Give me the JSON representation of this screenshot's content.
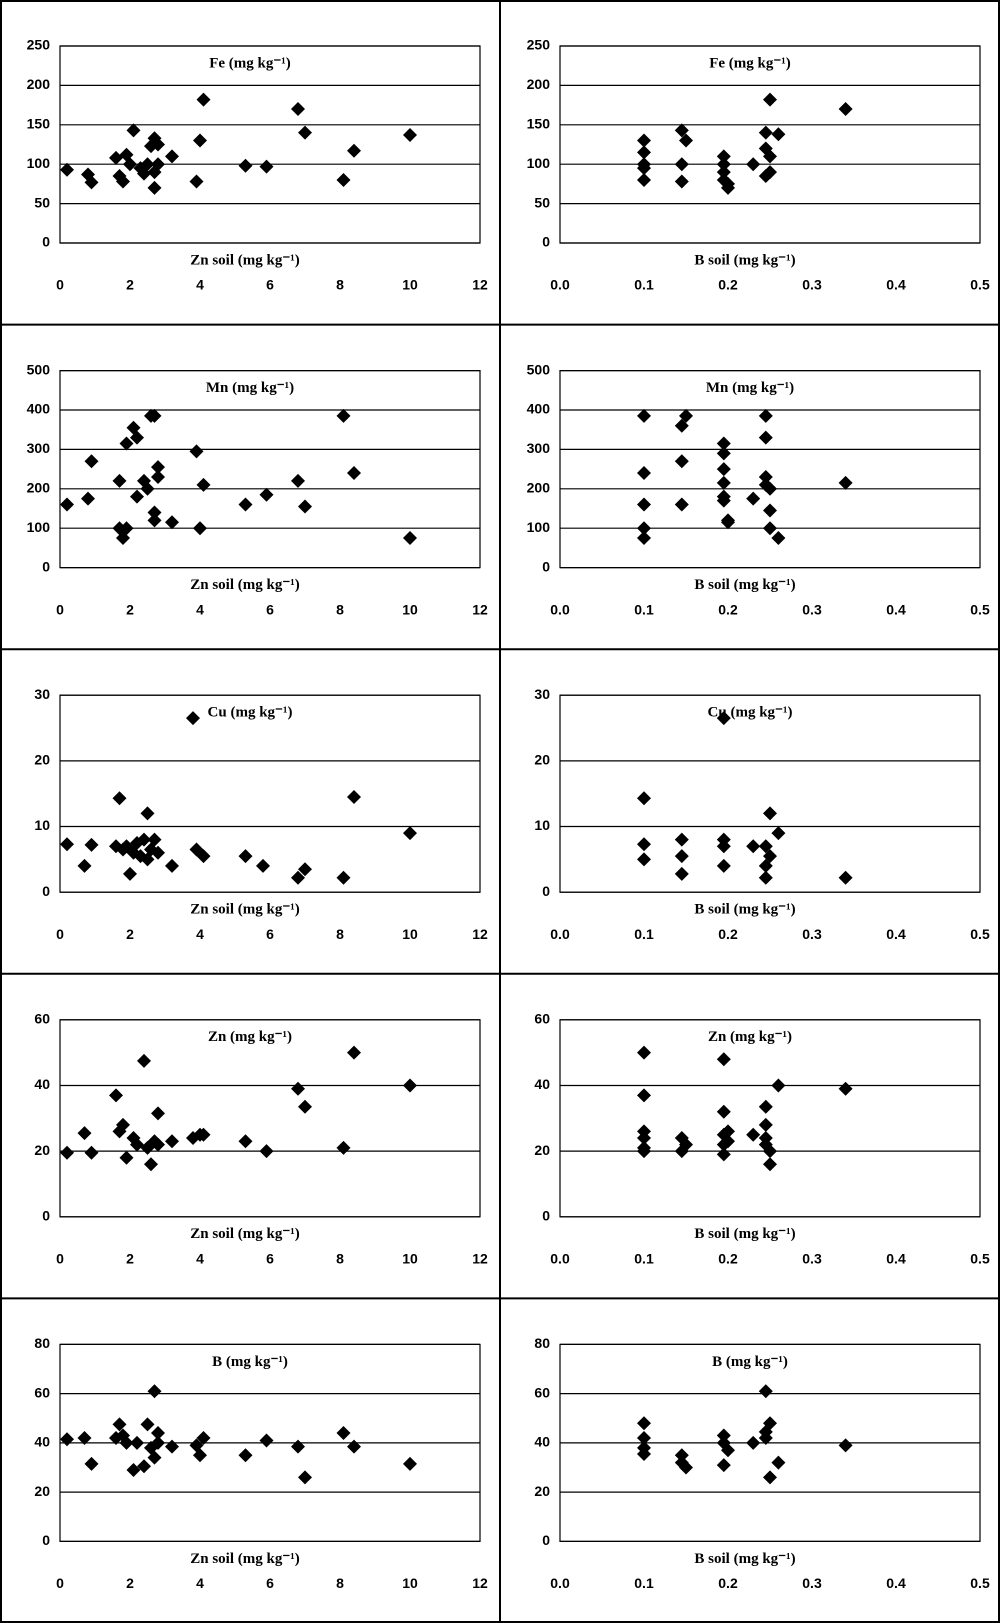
{
  "chart_data": [
    {
      "type": "scatter",
      "title": "Fe (mg kg⁻¹)",
      "x_label": "Zn soil (mg kg⁻¹)",
      "color": "#000000",
      "grid": true,
      "x": [
        0.2,
        0.8,
        0.9,
        1.6,
        1.7,
        1.8,
        1.9,
        2.0,
        2.1,
        2.3,
        2.4,
        2.5,
        2.6,
        2.7,
        2.7,
        2.7,
        2.8,
        2.8,
        3.2,
        3.9,
        4.0,
        4.1,
        5.3,
        5.9,
        6.8,
        7.0,
        8.1,
        8.4,
        10
      ],
      "values": [
        93,
        87,
        77,
        108,
        85,
        78,
        112,
        100,
        143,
        95,
        88,
        100,
        123,
        133,
        90,
        70,
        125,
        100,
        110,
        78,
        130,
        182,
        98,
        97,
        170,
        140,
        80,
        117,
        137
      ],
      "xlim": [
        0,
        12
      ],
      "xticks": [
        0,
        2,
        4,
        6,
        8,
        10,
        12
      ],
      "ylim": [
        0,
        250
      ],
      "yticks": [
        0,
        50,
        100,
        150,
        200,
        250
      ]
    },
    {
      "type": "scatter",
      "title": "Fe (mg kg⁻¹)",
      "x_label": "B soil (mg kg⁻¹)",
      "color": "#000000",
      "grid": true,
      "x": [
        0.1,
        0.1,
        0.1,
        0.1,
        0.1,
        0.145,
        0.145,
        0.145,
        0.15,
        0.195,
        0.195,
        0.195,
        0.195,
        0.2,
        0.2,
        0.23,
        0.245,
        0.245,
        0.245,
        0.25,
        0.25,
        0.25,
        0.26,
        0.34
      ],
      "values": [
        130,
        115,
        100,
        95,
        80,
        143,
        100,
        78,
        130,
        110,
        100,
        90,
        80,
        75,
        70,
        100,
        140,
        120,
        85,
        182,
        110,
        90,
        138,
        170
      ],
      "xlim": [
        0,
        0.5
      ],
      "xticks": [
        {
          "value": 0,
          "label": "0.0"
        },
        0.1,
        0.2,
        0.3,
        0.4,
        0.5
      ],
      "ylim": [
        0,
        250
      ],
      "yticks": [
        0,
        50,
        100,
        150,
        200,
        250
      ]
    },
    {
      "type": "scatter",
      "title": "Mn (mg kg⁻¹)",
      "x_label": "Zn soil (mg kg⁻¹)",
      "color": "#000000",
      "grid": true,
      "x": [
        0.2,
        0.8,
        0.9,
        1.7,
        1.7,
        1.8,
        1.9,
        1.9,
        2.1,
        2.2,
        2.2,
        2.4,
        2.5,
        2.6,
        2.7,
        2.7,
        2.7,
        2.8,
        2.8,
        3.2,
        3.9,
        4.0,
        4.1,
        5.3,
        5.9,
        6.8,
        7.0,
        8.1,
        8.4,
        10
      ],
      "values": [
        160,
        175,
        270,
        220,
        100,
        75,
        100,
        315,
        355,
        330,
        180,
        220,
        200,
        385,
        385,
        140,
        120,
        255,
        230,
        115,
        295,
        100,
        210,
        160,
        185,
        220,
        155,
        385,
        240,
        75
      ],
      "xlim": [
        0,
        12
      ],
      "xticks": [
        0,
        2,
        4,
        6,
        8,
        10,
        12
      ],
      "ylim": [
        0,
        500
      ],
      "yticks": [
        0,
        100,
        200,
        300,
        400,
        500
      ]
    },
    {
      "type": "scatter",
      "title": "Mn (mg kg⁻¹)",
      "x_label": "B soil (mg kg⁻¹)",
      "color": "#000000",
      "grid": true,
      "x": [
        0.1,
        0.1,
        0.1,
        0.1,
        0.1,
        0.145,
        0.145,
        0.145,
        0.15,
        0.195,
        0.195,
        0.195,
        0.195,
        0.195,
        0.195,
        0.2,
        0.2,
        0.23,
        0.245,
        0.245,
        0.245,
        0.245,
        0.25,
        0.25,
        0.25,
        0.26,
        0.34
      ],
      "values": [
        385,
        240,
        160,
        100,
        75,
        360,
        270,
        160,
        385,
        315,
        290,
        250,
        215,
        180,
        170,
        115,
        120,
        175,
        385,
        330,
        230,
        210,
        200,
        145,
        100,
        75,
        215
      ],
      "xlim": [
        0,
        0.5
      ],
      "xticks": [
        {
          "value": 0,
          "label": "0.0"
        },
        0.1,
        0.2,
        0.3,
        0.4,
        0.5
      ],
      "ylim": [
        0,
        500
      ],
      "yticks": [
        0,
        100,
        200,
        300,
        400,
        500
      ]
    },
    {
      "type": "scatter",
      "title": "Cu (mg kg⁻¹)",
      "x_label": "Zn soil (mg kg⁻¹)",
      "color": "#000000",
      "grid": true,
      "x": [
        0.2,
        0.7,
        0.9,
        1.6,
        1.7,
        1.8,
        1.9,
        2.0,
        2.1,
        2.2,
        2.3,
        2.4,
        2.5,
        2.5,
        2.6,
        2.7,
        2.8,
        3.2,
        3.8,
        3.9,
        4.1,
        5.3,
        5.8,
        6.8,
        7.0,
        8.1,
        8.4,
        10
      ],
      "values": [
        7.3,
        4,
        7.2,
        7,
        14.3,
        6.5,
        7,
        2.8,
        6,
        7.5,
        5.5,
        8,
        12,
        5,
        6.5,
        8,
        6,
        4,
        26.5,
        6.5,
        5.5,
        5.5,
        4,
        2.2,
        3.5,
        2.2,
        14.5,
        9
      ],
      "xlim": [
        0,
        12
      ],
      "xticks": [
        0,
        2,
        4,
        6,
        8,
        10,
        12
      ],
      "ylim": [
        0,
        30
      ],
      "yticks": [
        0,
        10,
        20,
        30
      ]
    },
    {
      "type": "scatter",
      "title": "Cu (mg kg⁻¹)",
      "x_label": "B soil (mg kg⁻¹)",
      "color": "#000000",
      "grid": true,
      "x": [
        0.1,
        0.1,
        0.1,
        0.145,
        0.145,
        0.145,
        0.195,
        0.195,
        0.195,
        0.195,
        0.23,
        0.245,
        0.245,
        0.245,
        0.25,
        0.25,
        0.26,
        0.34
      ],
      "values": [
        14.3,
        7.3,
        5,
        8,
        5.5,
        2.8,
        26.5,
        8,
        7,
        4,
        7,
        7,
        4,
        2.2,
        12,
        5.5,
        9,
        2.2
      ],
      "xlim": [
        0,
        0.5
      ],
      "xticks": [
        {
          "value": 0,
          "label": "0.0"
        },
        0.1,
        0.2,
        0.3,
        0.4,
        0.5
      ],
      "ylim": [
        0,
        30
      ],
      "yticks": [
        0,
        10,
        20,
        30
      ]
    },
    {
      "type": "scatter",
      "title": "Zn (mg kg⁻¹)",
      "x_label": "Zn soil (mg kg⁻¹)",
      "color": "#000000",
      "grid": true,
      "x": [
        0.2,
        0.7,
        0.9,
        1.6,
        1.7,
        1.8,
        1.9,
        2.1,
        2.2,
        2.4,
        2.5,
        2.6,
        2.7,
        2.8,
        2.8,
        3.2,
        3.8,
        4.0,
        4.1,
        5.3,
        5.9,
        6.8,
        7.0,
        8.1,
        8.4,
        10
      ],
      "values": [
        19.5,
        25.5,
        19.5,
        37,
        26,
        28,
        18,
        24,
        22,
        47.5,
        21,
        16,
        23,
        31.5,
        22,
        23,
        24,
        25,
        25,
        23,
        20,
        39,
        33.5,
        21,
        50,
        40
      ],
      "xlim": [
        0,
        12
      ],
      "xticks": [
        0,
        2,
        4,
        6,
        8,
        10,
        12
      ],
      "ylim": [
        0,
        60
      ],
      "yticks": [
        0,
        20,
        40,
        60
      ]
    },
    {
      "type": "scatter",
      "title": "Zn (mg kg⁻¹)",
      "x_label": "B soil (mg kg⁻¹)",
      "color": "#000000",
      "grid": true,
      "x": [
        0.1,
        0.1,
        0.1,
        0.1,
        0.1,
        0.1,
        0.145,
        0.145,
        0.15,
        0.195,
        0.195,
        0.195,
        0.195,
        0.195,
        0.2,
        0.2,
        0.23,
        0.245,
        0.245,
        0.245,
        0.245,
        0.25,
        0.25,
        0.26,
        0.34
      ],
      "values": [
        50,
        37,
        26,
        24,
        20,
        21,
        24,
        20,
        22,
        48,
        32,
        25,
        22,
        19,
        26,
        23,
        25,
        33.5,
        28,
        24,
        22,
        16,
        20,
        40,
        39
      ],
      "xlim": [
        0,
        0.5
      ],
      "xticks": [
        {
          "value": 0,
          "label": "0.0"
        },
        0.1,
        0.2,
        0.3,
        0.4,
        0.5
      ],
      "ylim": [
        0,
        60
      ],
      "yticks": [
        0,
        20,
        40,
        60
      ]
    },
    {
      "type": "scatter",
      "title": "B (mg kg⁻¹)",
      "x_label": "Zn soil (mg kg⁻¹)",
      "color": "#000000",
      "grid": true,
      "x": [
        0.2,
        0.7,
        0.9,
        1.6,
        1.7,
        1.8,
        1.9,
        2.1,
        2.2,
        2.4,
        2.5,
        2.6,
        2.7,
        2.7,
        2.8,
        2.8,
        3.2,
        3.9,
        4.0,
        4.1,
        5.3,
        5.9,
        6.8,
        7.0,
        8.1,
        8.4,
        10
      ],
      "values": [
        41.5,
        42,
        31.5,
        42,
        47.5,
        43,
        40,
        29,
        40,
        30.5,
        47.5,
        38,
        61,
        34,
        44,
        40,
        38.5,
        39,
        35,
        42,
        35,
        41,
        38.5,
        26,
        44,
        38.5,
        31.5
      ],
      "xlim": [
        0,
        12
      ],
      "xticks": [
        0,
        2,
        4,
        6,
        8,
        10,
        12
      ],
      "ylim": [
        0,
        80
      ],
      "yticks": [
        0,
        20,
        40,
        60,
        80
      ]
    },
    {
      "type": "scatter",
      "title": "B (mg kg⁻¹)",
      "x_label": "B soil (mg kg⁻¹)",
      "color": "#000000",
      "grid": true,
      "x": [
        0.1,
        0.1,
        0.1,
        0.1,
        0.145,
        0.145,
        0.15,
        0.195,
        0.195,
        0.195,
        0.2,
        0.23,
        0.245,
        0.245,
        0.245,
        0.25,
        0.25,
        0.26,
        0.34
      ],
      "values": [
        48,
        42,
        38,
        35.5,
        35,
        32,
        30,
        43,
        40,
        31,
        37,
        40,
        61,
        42,
        44.5,
        48,
        26,
        32,
        39
      ],
      "xlim": [
        0,
        0.5
      ],
      "xticks": [
        {
          "value": 0,
          "label": "0.0"
        },
        0.1,
        0.2,
        0.3,
        0.4,
        0.5
      ],
      "ylim": [
        0,
        80
      ],
      "yticks": [
        0,
        20,
        40,
        60,
        80
      ]
    }
  ]
}
